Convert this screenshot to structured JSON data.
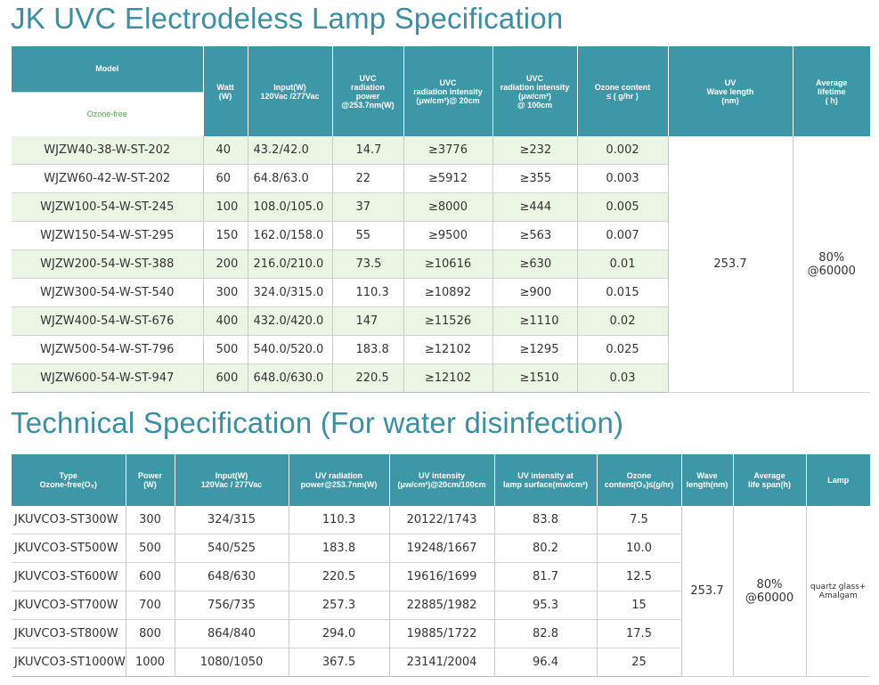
{
  "title1": "JK UVC Electrodeless Lamp Specification",
  "title2": "Technical Specification (For water disinfection)",
  "table1": {
    "headers": {
      "model": "Model",
      "ozone_free": "Ozone-free",
      "watt": "Watt\n(W)",
      "input": "Input(W)\n120Vac /277Vac",
      "uvc_power": "UVC\nradiation\npower\n@253.7nm(W)",
      "intensity20": "UVC\nradiation intensity\n(μw/cm²)@ 20cm",
      "intensity100": "UVC\nradiation intensity\n(μw/cm²)\n@ 100cm",
      "ozone": "Ozone content\n≤ ( g/hr )",
      "wavelength": "UV\nWave length\n(nm)",
      "lifetime": "Average\nlifetime\n( h)"
    },
    "rows": [
      {
        "model": "WJZW40-38-W-ST-202",
        "watt": "40",
        "input": "43.2/42.0",
        "power": "14.7",
        "i20": "≥3776",
        "i100": "≥232",
        "ozone": "0.002"
      },
      {
        "model": "WJZW60-42-W-ST-202",
        "watt": "60",
        "input": "64.8/63.0",
        "power": "22",
        "i20": "≥5912",
        "i100": "≥355",
        "ozone": "0.003"
      },
      {
        "model": "WJZW100-54-W-ST-245",
        "watt": "100",
        "input": "108.0/105.0",
        "power": "37",
        "i20": "≥8000",
        "i100": "≥444",
        "ozone": "0.005"
      },
      {
        "model": "WJZW150-54-W-ST-295",
        "watt": "150",
        "input": "162.0/158.0",
        "power": "55",
        "i20": "≥9500",
        "i100": "≥563",
        "ozone": "0.007"
      },
      {
        "model": "WJZW200-54-W-ST-388",
        "watt": "200",
        "input": "216.0/210.0",
        "power": "73.5",
        "i20": "≥10616",
        "i100": "≥630",
        "ozone": "0.01"
      },
      {
        "model": "WJZW300-54-W-ST-540",
        "watt": "300",
        "input": "324.0/315.0",
        "power": "110.3",
        "i20": "≥10892",
        "i100": "≥900",
        "ozone": "0.015"
      },
      {
        "model": "WJZW400-54-W-ST-676",
        "watt": "400",
        "input": "432.0/420.0",
        "power": "147",
        "i20": "≥11526",
        "i100": "≥1110",
        "ozone": "0.02"
      },
      {
        "model": "WJZW500-54-W-ST-796",
        "watt": "500",
        "input": "540.0/520.0",
        "power": "183.8",
        "i20": "≥12102",
        "i100": "≥1295",
        "ozone": "0.025"
      },
      {
        "model": "WJZW600-54-W-ST-947",
        "watt": "600",
        "input": "648.0/630.0",
        "power": "220.5",
        "i20": "≥12102",
        "i100": "≥1510",
        "ozone": "0.03"
      }
    ],
    "wavelength": "253.7",
    "lifetime": "80%\n@60000"
  },
  "table2": {
    "headers": {
      "type": "Type\nOzone-free(O₃)",
      "power": "Power\n(W)",
      "input": "Input(W)\n120Vac / 277Vac",
      "uv_power": "UV radiation\npower@253.7nm(W)",
      "intensity": "UV intensity\n(μw/cm²)@20cm/100cm",
      "surface": "UV intensity at\nlamp surface(mw/cm²)",
      "ozone": "Ozone\ncontent(O₃)≤(g/hr)",
      "wave": "Wave\nlength(nm)",
      "life": "Average\nlife span(h)",
      "lamp": "Lamp"
    },
    "rows": [
      {
        "type": "JKUVCO3-ST300W",
        "power": "300",
        "input": "324/315",
        "uvp": "110.3",
        "intensity": "20122/1743",
        "surface": "83.8",
        "ozone": "7.5"
      },
      {
        "type": "JKUVCO3-ST500W",
        "power": "500",
        "input": "540/525",
        "uvp": "183.8",
        "intensity": "19248/1667",
        "surface": "80.2",
        "ozone": "10.0"
      },
      {
        "type": "JKUVCO3-ST600W",
        "power": "600",
        "input": "648/630",
        "uvp": "220.5",
        "intensity": "19616/1699",
        "surface": "81.7",
        "ozone": "12.5"
      },
      {
        "type": "JKUVCO3-ST700W",
        "power": "700",
        "input": "756/735",
        "uvp": "257.3",
        "intensity": "22885/1982",
        "surface": "95.3",
        "ozone": "15"
      },
      {
        "type": "JKUVCO3-ST800W",
        "power": "800",
        "input": "864/840",
        "uvp": "294.0",
        "intensity": "19885/1722",
        "surface": "82.8",
        "ozone": "17.5"
      },
      {
        "type": "JKUVCO3-ST1000W",
        "power": "1000",
        "input": "1080/1050",
        "uvp": "367.5",
        "intensity": "23141/2004",
        "surface": "96.4",
        "ozone": "25"
      }
    ],
    "wavelength": "253.7",
    "lifespan": "80%\n@60000",
    "lamp": "quartz glass+\nAmalgam"
  },
  "colors": {
    "title": "#3a8fa3",
    "header": "#3d97a6",
    "row_tint": "#eaf5e3",
    "ozone_free": "#4aa64a"
  }
}
